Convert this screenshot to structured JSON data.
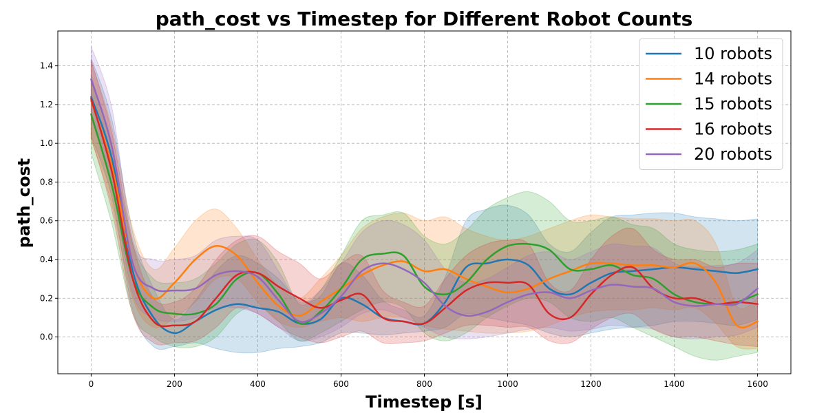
{
  "chart_data": {
    "type": "line",
    "title": "path_cost vs Timestep for Different Robot Counts",
    "xlabel": "Timestep [s]",
    "ylabel": "path_cost",
    "xlim": [
      -80,
      1680
    ],
    "ylim": [
      -0.19,
      1.58
    ],
    "xticks": [
      0,
      200,
      400,
      600,
      800,
      1000,
      1200,
      1400,
      1600
    ],
    "yticks": [
      0.0,
      0.2,
      0.4,
      0.6,
      0.8,
      1.0,
      1.2,
      1.4
    ],
    "ytick_labels": [
      "0.0",
      "0.2",
      "0.4",
      "0.6",
      "0.8",
      "1.0",
      "1.2",
      "1.4"
    ],
    "grid": true,
    "legend_position": "top-right",
    "x": [
      0,
      50,
      100,
      150,
      200,
      250,
      300,
      350,
      400,
      450,
      500,
      550,
      600,
      650,
      700,
      750,
      800,
      850,
      900,
      950,
      1000,
      1050,
      1100,
      1150,
      1200,
      1250,
      1300,
      1350,
      1400,
      1450,
      1500,
      1550,
      1600
    ],
    "series": [
      {
        "name": "10 robots",
        "color": "#1f77b4",
        "values": [
          1.24,
          0.92,
          0.34,
          0.1,
          0.02,
          0.08,
          0.14,
          0.17,
          0.15,
          0.13,
          0.07,
          0.09,
          0.2,
          0.17,
          0.1,
          0.08,
          0.07,
          0.18,
          0.36,
          0.38,
          0.4,
          0.37,
          0.25,
          0.22,
          0.28,
          0.33,
          0.34,
          0.35,
          0.36,
          0.35,
          0.34,
          0.33,
          0.35
        ],
        "lower": [
          1.04,
          0.72,
          0.14,
          -0.05,
          -0.05,
          -0.03,
          -0.06,
          -0.08,
          -0.08,
          -0.06,
          -0.05,
          -0.03,
          0.02,
          0.02,
          0.01,
          0.02,
          0.03,
          0.05,
          0.12,
          0.1,
          0.08,
          0.06,
          0.02,
          0.0,
          0.02,
          0.04,
          0.05,
          0.06,
          0.08,
          0.08,
          0.07,
          0.06,
          0.09
        ],
        "upper": [
          1.44,
          1.12,
          0.54,
          0.25,
          0.09,
          0.19,
          0.34,
          0.42,
          0.38,
          0.3,
          0.19,
          0.21,
          0.38,
          0.32,
          0.19,
          0.14,
          0.11,
          0.31,
          0.6,
          0.66,
          0.68,
          0.63,
          0.48,
          0.44,
          0.54,
          0.62,
          0.63,
          0.64,
          0.64,
          0.62,
          0.61,
          0.6,
          0.61
        ]
      },
      {
        "name": "14 robots",
        "color": "#ff7f0e",
        "values": [
          1.22,
          0.88,
          0.38,
          0.2,
          0.28,
          0.4,
          0.47,
          0.42,
          0.28,
          0.16,
          0.11,
          0.18,
          0.25,
          0.32,
          0.37,
          0.39,
          0.34,
          0.35,
          0.3,
          0.26,
          0.23,
          0.25,
          0.3,
          0.34,
          0.38,
          0.38,
          0.37,
          0.37,
          0.36,
          0.38,
          0.28,
          0.06,
          0.08
        ],
        "lower": [
          1.02,
          0.68,
          0.2,
          0.05,
          0.1,
          0.18,
          0.3,
          0.3,
          0.18,
          0.08,
          0.05,
          0.08,
          0.1,
          0.08,
          0.1,
          0.1,
          0.06,
          0.04,
          0.03,
          0.02,
          0.02,
          0.03,
          0.06,
          0.1,
          0.13,
          0.14,
          0.14,
          0.15,
          0.14,
          0.15,
          0.07,
          -0.05,
          -0.06
        ],
        "upper": [
          1.42,
          1.08,
          0.56,
          0.35,
          0.46,
          0.6,
          0.66,
          0.56,
          0.4,
          0.26,
          0.2,
          0.3,
          0.42,
          0.56,
          0.62,
          0.64,
          0.6,
          0.62,
          0.56,
          0.52,
          0.5,
          0.52,
          0.56,
          0.6,
          0.63,
          0.62,
          0.61,
          0.61,
          0.6,
          0.6,
          0.48,
          0.16,
          0.2
        ]
      },
      {
        "name": "15 robots",
        "color": "#2ca02c",
        "values": [
          1.15,
          0.78,
          0.3,
          0.15,
          0.12,
          0.12,
          0.17,
          0.3,
          0.33,
          0.22,
          0.07,
          0.13,
          0.25,
          0.4,
          0.43,
          0.42,
          0.26,
          0.22,
          0.28,
          0.4,
          0.47,
          0.48,
          0.45,
          0.35,
          0.35,
          0.37,
          0.32,
          0.3,
          0.22,
          0.18,
          0.17,
          0.18,
          0.22
        ],
        "lower": [
          0.95,
          0.58,
          0.12,
          0.0,
          -0.05,
          -0.05,
          0.0,
          0.12,
          0.16,
          0.08,
          -0.02,
          0.02,
          0.08,
          0.14,
          0.18,
          0.15,
          0.02,
          -0.02,
          0.02,
          0.1,
          0.16,
          0.2,
          0.18,
          0.1,
          0.08,
          0.1,
          0.05,
          0.0,
          -0.05,
          -0.1,
          -0.12,
          -0.1,
          -0.08
        ],
        "upper": [
          1.35,
          0.98,
          0.48,
          0.3,
          0.28,
          0.3,
          0.38,
          0.48,
          0.5,
          0.38,
          0.17,
          0.24,
          0.42,
          0.6,
          0.63,
          0.64,
          0.52,
          0.48,
          0.55,
          0.66,
          0.72,
          0.75,
          0.7,
          0.6,
          0.6,
          0.62,
          0.58,
          0.56,
          0.48,
          0.45,
          0.44,
          0.45,
          0.48
        ]
      },
      {
        "name": "16 robots",
        "color": "#d62728",
        "values": [
          1.23,
          0.85,
          0.3,
          0.08,
          0.06,
          0.08,
          0.2,
          0.32,
          0.33,
          0.26,
          0.2,
          0.15,
          0.19,
          0.22,
          0.1,
          0.08,
          0.07,
          0.15,
          0.24,
          0.28,
          0.28,
          0.27,
          0.12,
          0.1,
          0.22,
          0.32,
          0.36,
          0.25,
          0.2,
          0.2,
          0.17,
          0.18,
          0.17
        ],
        "lower": [
          1.03,
          0.65,
          0.12,
          -0.03,
          -0.03,
          -0.02,
          0.05,
          0.15,
          0.12,
          0.05,
          0.0,
          -0.03,
          0.0,
          0.03,
          -0.03,
          -0.03,
          -0.02,
          0.02,
          0.06,
          0.06,
          0.05,
          0.05,
          -0.02,
          -0.03,
          0.04,
          0.1,
          0.12,
          0.04,
          0.0,
          0.0,
          -0.02,
          -0.04,
          -0.05
        ],
        "upper": [
          1.43,
          1.05,
          0.48,
          0.2,
          0.18,
          0.25,
          0.4,
          0.5,
          0.52,
          0.44,
          0.38,
          0.3,
          0.38,
          0.42,
          0.24,
          0.18,
          0.16,
          0.3,
          0.42,
          0.48,
          0.5,
          0.48,
          0.28,
          0.24,
          0.4,
          0.52,
          0.56,
          0.45,
          0.4,
          0.4,
          0.36,
          0.38,
          0.38
        ]
      },
      {
        "name": "20 robots",
        "color": "#9467bd",
        "values": [
          1.33,
          0.98,
          0.38,
          0.25,
          0.24,
          0.25,
          0.32,
          0.34,
          0.31,
          0.19,
          0.08,
          0.12,
          0.21,
          0.34,
          0.38,
          0.35,
          0.28,
          0.16,
          0.11,
          0.13,
          0.18,
          0.22,
          0.23,
          0.2,
          0.24,
          0.27,
          0.26,
          0.25,
          0.18,
          0.16,
          0.17,
          0.17,
          0.25
        ],
        "lower": [
          1.13,
          0.78,
          0.22,
          0.1,
          0.08,
          0.1,
          0.15,
          0.15,
          0.12,
          0.05,
          -0.02,
          0.0,
          0.05,
          0.12,
          0.14,
          0.1,
          0.05,
          0.0,
          -0.01,
          0.0,
          0.02,
          0.04,
          0.05,
          0.03,
          0.04,
          0.06,
          0.05,
          0.04,
          0.0,
          -0.01,
          0.0,
          0.01,
          0.05
        ],
        "upper": [
          1.5,
          1.18,
          0.5,
          0.4,
          0.4,
          0.42,
          0.5,
          0.52,
          0.5,
          0.34,
          0.18,
          0.24,
          0.38,
          0.54,
          0.6,
          0.58,
          0.5,
          0.35,
          0.28,
          0.3,
          0.36,
          0.42,
          0.44,
          0.4,
          0.44,
          0.48,
          0.47,
          0.46,
          0.38,
          0.36,
          0.37,
          0.38,
          0.45
        ]
      }
    ]
  }
}
